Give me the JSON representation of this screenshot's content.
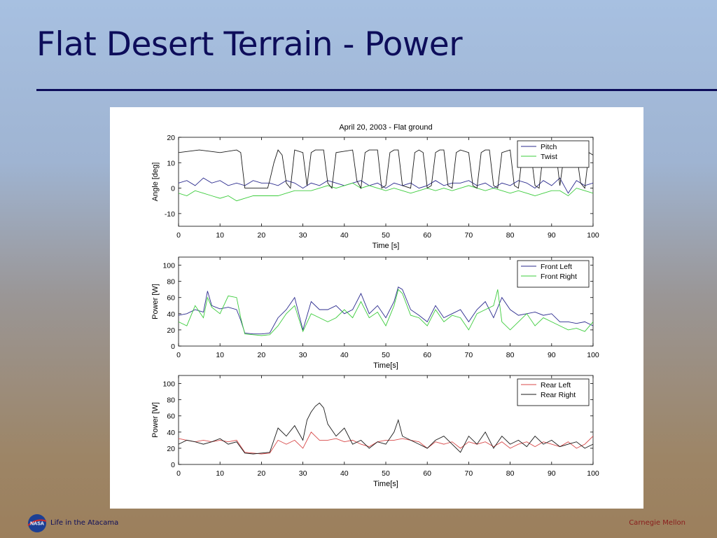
{
  "slide": {
    "title": "Flat Desert Terrain - Power",
    "footer_left": "Life in the Atacama",
    "footer_right": "Carnegie Mellon",
    "logo_text": "NASA",
    "colors": {
      "title": "#0d0d5a",
      "footer_right": "#8a1b1b"
    }
  },
  "chart_data": [
    {
      "type": "line",
      "title": "April 20, 2003 - Flat ground",
      "xlabel": "Time [s]",
      "ylabel": "Angle [deg]",
      "xlim": [
        0,
        100
      ],
      "ylim": [
        -15,
        20
      ],
      "xticks": [
        0,
        10,
        20,
        30,
        40,
        50,
        60,
        70,
        80,
        90,
        100
      ],
      "yticks": [
        -10,
        0,
        10,
        20
      ],
      "legend_position": "top-right",
      "series": [
        {
          "name": "Pitch",
          "color": "#2b2b8e",
          "x": [
            0,
            2,
            4,
            6,
            8,
            10,
            12,
            14,
            16,
            18,
            20,
            22,
            24,
            26,
            28,
            30,
            32,
            34,
            36,
            38,
            40,
            42,
            44,
            46,
            48,
            50,
            52,
            54,
            56,
            58,
            60,
            62,
            64,
            66,
            68,
            70,
            72,
            74,
            76,
            78,
            80,
            82,
            84,
            86,
            88,
            90,
            92,
            94,
            96,
            98,
            100
          ],
          "y": [
            2,
            3,
            1,
            4,
            2,
            3,
            1,
            2,
            1,
            3,
            2,
            2,
            1,
            3,
            2,
            0,
            2,
            1,
            3,
            2,
            1,
            2,
            3,
            1,
            2,
            0,
            2,
            1,
            2,
            0,
            1,
            3,
            1,
            2,
            2,
            3,
            1,
            2,
            0,
            2,
            1,
            3,
            2,
            0,
            3,
            1,
            4,
            -2,
            3,
            1,
            2
          ]
        },
        {
          "name": "Twist",
          "color": "#3ccc3c",
          "x": [
            0,
            2,
            4,
            6,
            8,
            10,
            12,
            14,
            16,
            18,
            20,
            22,
            24,
            26,
            28,
            30,
            32,
            34,
            36,
            38,
            40,
            42,
            44,
            46,
            48,
            50,
            52,
            54,
            56,
            58,
            60,
            62,
            64,
            66,
            68,
            70,
            72,
            74,
            76,
            78,
            80,
            82,
            84,
            86,
            88,
            90,
            92,
            94,
            96,
            98,
            100
          ],
          "y": [
            -2,
            -3,
            -1,
            -2,
            -3,
            -4,
            -3,
            -5,
            -4,
            -3,
            -3,
            -3,
            -3,
            -2,
            -1,
            -1,
            -1,
            0,
            1,
            0,
            1,
            2,
            0,
            1,
            0,
            -1,
            0,
            -1,
            -2,
            -1,
            0,
            -1,
            0,
            -1,
            0,
            1,
            0,
            -1,
            0,
            -1,
            -2,
            -1,
            -2,
            -3,
            -2,
            -1,
            -1,
            -3,
            0,
            -1,
            -2
          ]
        },
        {
          "name": "",
          "color": "#1a1a1a",
          "x": [
            0,
            5,
            10,
            14,
            15,
            16,
            21.5,
            22,
            23,
            24,
            25,
            26,
            27,
            28,
            30,
            31,
            32,
            33,
            35,
            36,
            37,
            38,
            42,
            43,
            44,
            45,
            46,
            48,
            49,
            50,
            51,
            52,
            53,
            54,
            56,
            57,
            58,
            59,
            60,
            61,
            62,
            63,
            64,
            65,
            66,
            67,
            68,
            70,
            71,
            72,
            73,
            74,
            75,
            76,
            77,
            78,
            80,
            81,
            82,
            83,
            84,
            85,
            86,
            87,
            88,
            90,
            91,
            92,
            93,
            95,
            96,
            97,
            98,
            99,
            100
          ],
          "y": [
            14,
            15,
            14,
            15,
            14,
            0,
            0,
            3,
            10,
            15,
            13,
            2,
            0,
            15,
            14,
            1,
            14,
            15,
            15,
            2,
            0,
            14,
            15,
            3,
            0,
            14,
            15,
            15,
            0,
            1,
            14,
            15,
            15,
            1,
            0,
            14,
            15,
            14,
            0,
            1,
            14,
            15,
            15,
            1,
            0,
            14,
            15,
            14,
            1,
            0,
            14,
            15,
            15,
            1,
            0,
            14,
            15,
            1,
            0,
            14,
            15,
            14,
            1,
            0,
            14,
            15,
            15,
            1,
            13,
            15,
            14,
            2,
            0,
            14,
            13
          ]
        }
      ]
    },
    {
      "type": "line",
      "title": "",
      "xlabel": "Time[s]",
      "ylabel": "Power [W]",
      "xlim": [
        0,
        100
      ],
      "ylim": [
        0,
        110
      ],
      "xticks": [
        0,
        10,
        20,
        30,
        40,
        50,
        60,
        70,
        80,
        90,
        100
      ],
      "yticks": [
        0,
        20,
        40,
        60,
        80,
        100
      ],
      "legend_position": "top-right",
      "series": [
        {
          "name": "Front Left",
          "color": "#2b2b8e",
          "x": [
            0,
            2,
            4,
            6,
            7,
            8,
            10,
            12,
            14,
            15,
            16,
            18,
            20,
            22,
            24,
            26,
            28,
            30,
            32,
            34,
            36,
            38,
            40,
            42,
            44,
            46,
            48,
            50,
            52,
            53,
            54,
            56,
            58,
            60,
            62,
            64,
            66,
            68,
            70,
            72,
            74,
            76,
            78,
            80,
            82,
            84,
            86,
            88,
            90,
            92,
            94,
            96,
            98,
            100
          ],
          "y": [
            38,
            40,
            45,
            42,
            68,
            50,
            46,
            48,
            45,
            32,
            16,
            15,
            15,
            16,
            35,
            45,
            60,
            20,
            55,
            45,
            45,
            50,
            40,
            45,
            65,
            40,
            50,
            35,
            55,
            73,
            70,
            45,
            38,
            30,
            50,
            35,
            40,
            45,
            30,
            45,
            55,
            35,
            60,
            45,
            38,
            40,
            42,
            38,
            40,
            30,
            30,
            28,
            30,
            25
          ]
        },
        {
          "name": "Front Right",
          "color": "#3ccc3c",
          "x": [
            0,
            2,
            4,
            6,
            7,
            8,
            10,
            12,
            14,
            15,
            16,
            18,
            20,
            22,
            24,
            26,
            28,
            30,
            32,
            34,
            36,
            38,
            40,
            42,
            44,
            46,
            48,
            50,
            52,
            53,
            54,
            56,
            58,
            60,
            62,
            64,
            66,
            68,
            70,
            72,
            74,
            76,
            77,
            78,
            80,
            82,
            84,
            86,
            88,
            90,
            92,
            94,
            96,
            98,
            100
          ],
          "y": [
            30,
            25,
            50,
            35,
            60,
            48,
            40,
            62,
            60,
            35,
            15,
            14,
            13,
            14,
            25,
            40,
            50,
            18,
            40,
            35,
            30,
            35,
            45,
            35,
            55,
            35,
            42,
            25,
            50,
            70,
            65,
            38,
            35,
            25,
            45,
            30,
            38,
            35,
            20,
            40,
            45,
            50,
            70,
            30,
            20,
            30,
            40,
            25,
            35,
            30,
            25,
            20,
            22,
            18,
            30
          ]
        }
      ]
    },
    {
      "type": "line",
      "title": "",
      "xlabel": "Time[s]",
      "ylabel": "Power [W]",
      "xlim": [
        0,
        100
      ],
      "ylim": [
        0,
        110
      ],
      "xticks": [
        0,
        10,
        20,
        30,
        40,
        50,
        60,
        70,
        80,
        90,
        100
      ],
      "yticks": [
        0,
        20,
        40,
        60,
        80,
        100
      ],
      "legend_position": "top-right",
      "series": [
        {
          "name": "Rear Left",
          "color": "#d84a4a",
          "x": [
            0,
            2,
            4,
            6,
            8,
            10,
            12,
            14,
            16,
            18,
            20,
            22,
            24,
            26,
            28,
            30,
            32,
            34,
            36,
            38,
            40,
            42,
            44,
            46,
            48,
            50,
            52,
            54,
            56,
            58,
            60,
            62,
            64,
            66,
            68,
            70,
            72,
            74,
            76,
            78,
            80,
            82,
            84,
            86,
            88,
            90,
            92,
            94,
            96,
            98,
            100
          ],
          "y": [
            32,
            30,
            28,
            30,
            28,
            30,
            28,
            30,
            15,
            14,
            13,
            14,
            30,
            25,
            30,
            20,
            40,
            30,
            30,
            32,
            28,
            30,
            25,
            22,
            28,
            30,
            30,
            32,
            30,
            28,
            20,
            28,
            25,
            28,
            20,
            28,
            25,
            28,
            22,
            28,
            20,
            25,
            28,
            22,
            28,
            25,
            22,
            28,
            20,
            25,
            35
          ]
        },
        {
          "name": "Rear Right",
          "color": "#1a1a1a",
          "x": [
            0,
            2,
            4,
            6,
            8,
            10,
            12,
            14,
            16,
            18,
            20,
            22,
            24,
            26,
            28,
            30,
            31,
            32,
            33,
            34,
            35,
            36,
            38,
            40,
            42,
            44,
            46,
            48,
            50,
            52,
            53,
            54,
            56,
            58,
            60,
            62,
            64,
            66,
            68,
            70,
            72,
            74,
            76,
            78,
            80,
            82,
            84,
            86,
            88,
            90,
            92,
            94,
            96,
            98,
            100
          ],
          "y": [
            25,
            30,
            28,
            25,
            28,
            32,
            25,
            28,
            14,
            13,
            14,
            15,
            45,
            35,
            48,
            30,
            55,
            65,
            72,
            76,
            70,
            50,
            35,
            45,
            25,
            30,
            20,
            28,
            25,
            40,
            55,
            35,
            30,
            25,
            20,
            30,
            35,
            25,
            15,
            35,
            25,
            40,
            20,
            35,
            25,
            30,
            22,
            35,
            25,
            30,
            22,
            25,
            28,
            20,
            25
          ]
        }
      ]
    }
  ]
}
